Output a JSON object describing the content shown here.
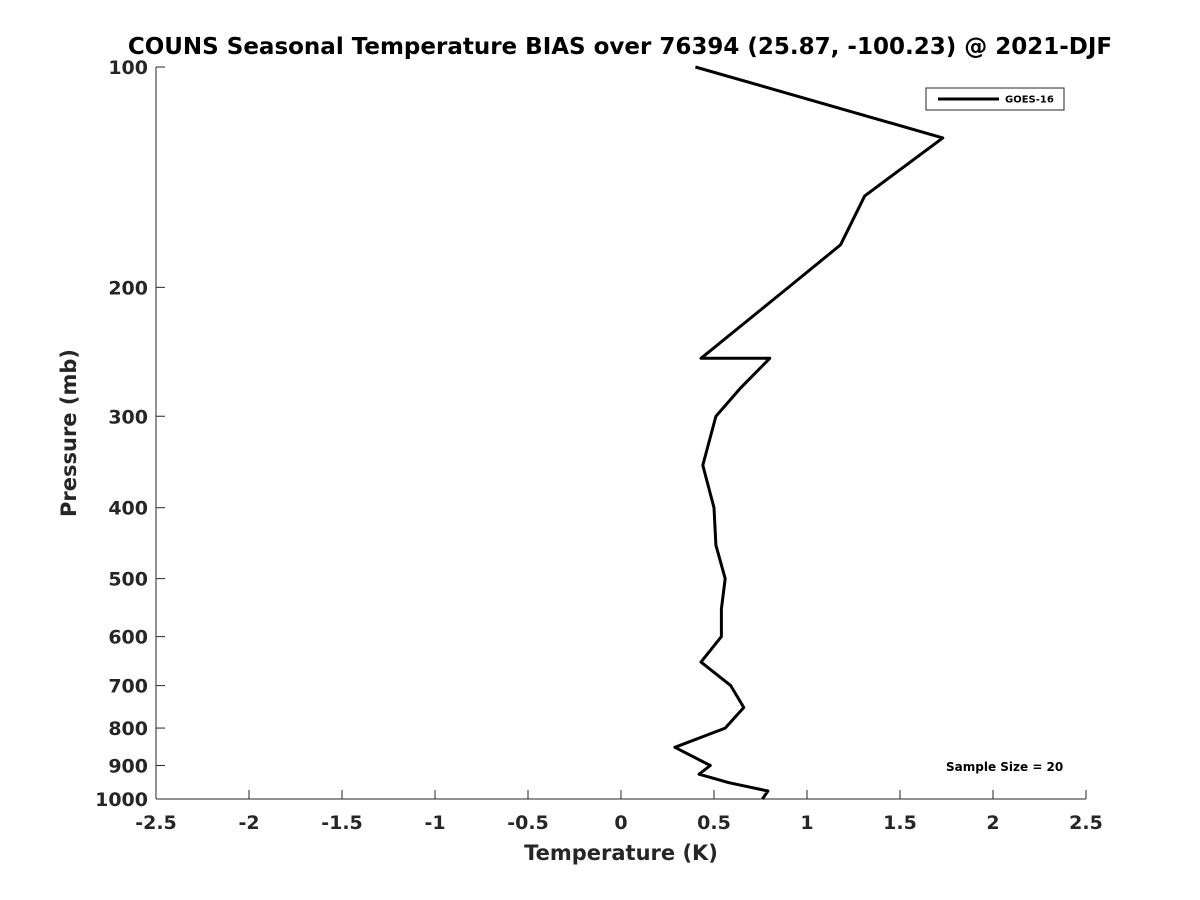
{
  "chart_data": {
    "type": "line",
    "title": "COUNS Seasonal Temperature BIAS over 76394 (25.87, -100.23) @ 2021-DJF",
    "xlabel": "Temperature (K)",
    "ylabel": "Pressure (mb)",
    "xlim": [
      -2.5,
      2.5
    ],
    "ylim": [
      100,
      1000
    ],
    "y_scale": "log",
    "y_reversed": true,
    "x_ticks": [
      -2.5,
      -2,
      -1.5,
      -1,
      -0.5,
      0,
      0.5,
      1,
      1.5,
      2,
      2.5
    ],
    "x_tick_labels": [
      "-2.5",
      "-2",
      "-1.5",
      "-1",
      "-0.5",
      "0",
      "0.5",
      "1",
      "1.5",
      "2",
      "2.5"
    ],
    "y_ticks": [
      100,
      200,
      300,
      400,
      500,
      600,
      700,
      800,
      900,
      1000
    ],
    "y_tick_labels": [
      "100",
      "200",
      "300",
      "400",
      "500",
      "600",
      "700",
      "800",
      "900",
      "1000"
    ],
    "grid": false,
    "legend_position": "top-right",
    "annotation": "Sample Size = 20",
    "series": [
      {
        "name": "GOES-16",
        "color": "#000000",
        "points": [
          {
            "x": 0.4,
            "p": 100
          },
          {
            "x": 1.73,
            "p": 125
          },
          {
            "x": 1.31,
            "p": 150
          },
          {
            "x": 1.18,
            "p": 175
          },
          {
            "x": 0.9,
            "p": 200
          },
          {
            "x": 0.43,
            "p": 250
          },
          {
            "x": 0.8,
            "p": 250
          },
          {
            "x": 0.64,
            "p": 275
          },
          {
            "x": 0.51,
            "p": 300
          },
          {
            "x": 0.44,
            "p": 350
          },
          {
            "x": 0.5,
            "p": 400
          },
          {
            "x": 0.51,
            "p": 450
          },
          {
            "x": 0.56,
            "p": 500
          },
          {
            "x": 0.54,
            "p": 550
          },
          {
            "x": 0.54,
            "p": 600
          },
          {
            "x": 0.43,
            "p": 650
          },
          {
            "x": 0.59,
            "p": 700
          },
          {
            "x": 0.66,
            "p": 750
          },
          {
            "x": 0.56,
            "p": 800
          },
          {
            "x": 0.29,
            "p": 850
          },
          {
            "x": 0.48,
            "p": 900
          },
          {
            "x": 0.42,
            "p": 925
          },
          {
            "x": 0.58,
            "p": 950
          },
          {
            "x": 0.79,
            "p": 975
          },
          {
            "x": 0.76,
            "p": 1000
          }
        ]
      }
    ]
  }
}
